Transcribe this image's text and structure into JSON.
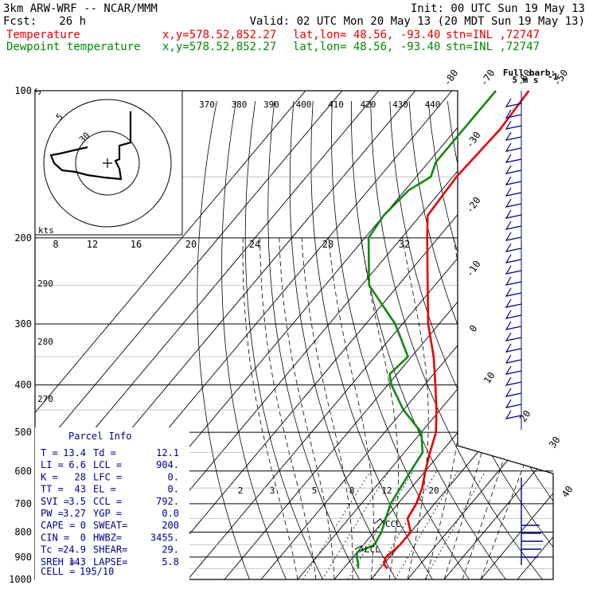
{
  "header": {
    "title_left": "3km ARW-WRF -- NCAR/MMM",
    "init": "Init: 00 UTC Sun 19 May 13",
    "fcst_label": "Fcst:",
    "fcst_value": "26 h",
    "valid": "Valid: 02 UTC Mon 20 May 13 (20 MDT Sun 19 May 13)",
    "legend": [
      {
        "name": "Temperature",
        "xy": "x,y=578.52,852.27",
        "latlon": "lat,lon= 48.56, -93.40",
        "stn": "stn=INL ,72747",
        "color": "#e80000"
      },
      {
        "name": "Dewpoint temperature",
        "xy": "x,y=578.52,852.27",
        "latlon": "lat,lon= 48.56, -93.40",
        "stn": "stn=INL ,72747",
        "color": "#008800"
      }
    ]
  },
  "colors": {
    "temperature": "#e80000",
    "dewpoint": "#118811",
    "frame": "#000000",
    "parcel_text": "#00008b",
    "barbs": "#00008b"
  },
  "chart_data": {
    "type": "line",
    "subtype": "skew-T log-p sounding",
    "pressure_ticks": [
      100,
      200,
      300,
      400,
      500,
      600,
      700,
      800,
      900,
      1000
    ],
    "pressure_labels": [
      "100",
      "200",
      "300",
      "400",
      "500",
      "600",
      "700",
      "800",
      "900",
      "1000"
    ],
    "isotherm_top_labels": [
      "-80",
      "-70",
      "-60",
      "-50",
      "-40"
    ],
    "isotherm_right_labels": [
      "-30",
      "-20",
      "-10",
      "0",
      "10",
      "20",
      "30",
      "40"
    ],
    "theta_labels": [
      "370",
      "380",
      "390",
      "400",
      "410",
      "420",
      "430",
      "440"
    ],
    "theta_left_labels": [
      "290",
      "280",
      "270"
    ],
    "mixing_ratio_labels": [
      "2",
      "3",
      "5",
      "8",
      "12",
      "20"
    ],
    "hodo_speed_labels": [
      "8",
      "12",
      "16",
      "20",
      "24",
      "28",
      "32"
    ],
    "hodo_units": "kts",
    "hodo_ring_labels": [
      "5",
      "30",
      "5"
    ],
    "hodo_trace": [
      [
        164,
        140
      ],
      [
        164,
        179
      ],
      [
        150,
        183
      ],
      [
        150,
        200
      ],
      [
        145,
        202
      ],
      [
        150,
        212
      ],
      [
        152,
        225
      ],
      [
        131,
        223
      ],
      [
        110,
        220
      ],
      [
        95,
        216
      ],
      [
        78,
        214
      ],
      [
        68,
        205
      ],
      [
        64,
        195
      ],
      [
        75,
        193
      ],
      [
        92,
        189
      ],
      [
        110,
        185
      ]
    ],
    "barb_label": "Full barb:",
    "barb_units": "5 m s",
    "barb_exp": "-1",
    "series": [
      {
        "name": "Temperature",
        "points": [
          [
            100,
            -59
          ],
          [
            120,
            -58
          ],
          [
            150,
            -59
          ],
          [
            180,
            -58
          ],
          [
            200,
            -53
          ],
          [
            250,
            -42
          ],
          [
            300,
            -33
          ],
          [
            350,
            -24
          ],
          [
            400,
            -17
          ],
          [
            450,
            -11
          ],
          [
            500,
            -6
          ],
          [
            550,
            -3
          ],
          [
            600,
            0
          ],
          [
            650,
            3
          ],
          [
            700,
            5
          ],
          [
            750,
            6
          ],
          [
            800,
            10
          ],
          [
            850,
            10
          ],
          [
            900,
            9
          ],
          [
            930,
            10
          ],
          [
            950,
            12
          ]
        ]
      },
      {
        "name": "Dewpoint temperature",
        "points": [
          [
            100,
            -68
          ],
          [
            120,
            -68
          ],
          [
            140,
            -68
          ],
          [
            150,
            -66
          ],
          [
            160,
            -69
          ],
          [
            180,
            -70
          ],
          [
            200,
            -69
          ],
          [
            250,
            -58
          ],
          [
            300,
            -42
          ],
          [
            350,
            -31
          ],
          [
            380,
            -32
          ],
          [
            400,
            -29
          ],
          [
            450,
            -20
          ],
          [
            500,
            -10
          ],
          [
            550,
            -5
          ],
          [
            600,
            -4
          ],
          [
            700,
            -2
          ],
          [
            800,
            2
          ],
          [
            850,
            3
          ],
          [
            880,
            0
          ],
          [
            900,
            1
          ],
          [
            930,
            3
          ],
          [
            950,
            4
          ]
        ]
      }
    ],
    "wind_barbs_ms": [
      [
        100,
        20
      ],
      [
        140,
        15
      ],
      [
        180,
        15
      ],
      [
        210,
        15
      ],
      [
        240,
        15
      ],
      [
        280,
        15
      ],
      [
        310,
        15
      ],
      [
        350,
        15
      ],
      [
        380,
        15
      ],
      [
        420,
        15
      ],
      [
        460,
        15
      ],
      [
        500,
        15
      ]
    ],
    "annotations": [
      "CCL",
      "LCL"
    ]
  },
  "parcel_info": {
    "title": "Parcel Info",
    "rows": [
      {
        "k1": "T  =",
        "v1": "13.4",
        "k2": "Td =",
        "v2": "12.1"
      },
      {
        "k1": "LI =",
        "v1": "6.6",
        "k2": "LCL =",
        "v2": "904."
      },
      {
        "k1": "K  =",
        "v1": "28",
        "k2": "LFC =",
        "v2": "0."
      },
      {
        "k1": "TT =",
        "v1": "43",
        "k2": "EL  =",
        "v2": "0."
      },
      {
        "k1": "SVI =",
        "v1": "3.5",
        "k2": "CCL =",
        "v2": "792."
      },
      {
        "k1": "PW =",
        "v1": "3.27",
        "k2": "YGP =",
        "v2": "0.0"
      },
      {
        "k1": "CAPE =",
        "v1": "0",
        "k2": "SWEAT=",
        "v2": "200"
      },
      {
        "k1": "CIN =",
        "v1": "0",
        "k2": "HWBZ=",
        "v2": "3455."
      },
      {
        "k1": "Tc =",
        "v1": "24.9",
        "k2": "SHEAR=",
        "v2": "29."
      },
      {
        "k1": "SREH =",
        "v1": "143",
        "k2": "LAPSE=",
        "v2": "5.8"
      }
    ],
    "cell_label": "CELL =",
    "cell_value": "195/10"
  }
}
